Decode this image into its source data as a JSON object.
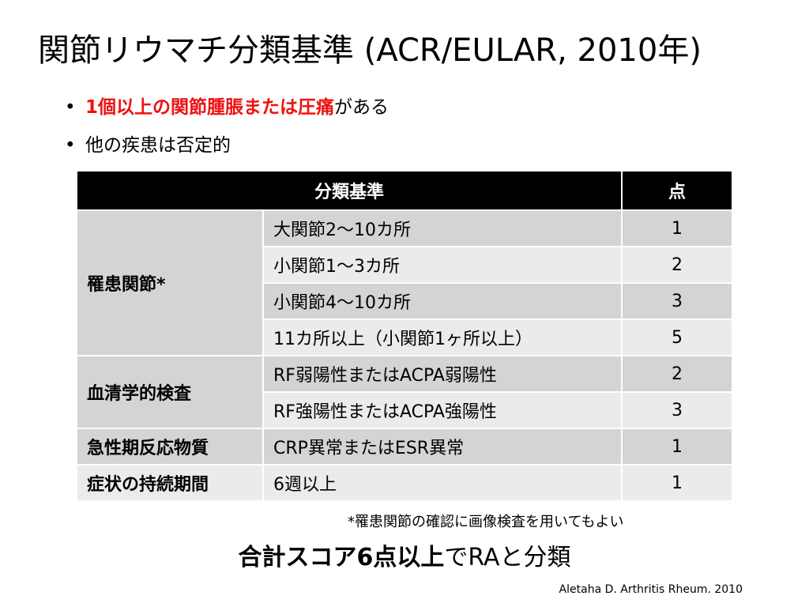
{
  "title": "関節リウマチ分類基準 (ACR/EULAR, 2010年)",
  "bullets": {
    "b1_dot": "•",
    "b1_red": "1個以上の関節腫脹または圧痛",
    "b1_rest": "がある",
    "b2_dot": "•",
    "b2_text": "他の疾患は否定的"
  },
  "table": {
    "header_criteria": "分類基準",
    "header_points": "点",
    "categories": {
      "joints": "罹患関節*",
      "serology": "血清学的検査",
      "acute": "急性期反応物質",
      "duration": "症状の持続期間"
    },
    "rows": [
      {
        "desc": "大関節2～10カ所",
        "pts": "1"
      },
      {
        "desc": "小関節1～3カ所",
        "pts": "2"
      },
      {
        "desc": "小関節4～10カ所",
        "pts": "3"
      },
      {
        "desc": "11カ所以上（小関節1ヶ所以上）",
        "pts": "5"
      },
      {
        "desc": "RF弱陽性またはACPA弱陽性",
        "pts": "2"
      },
      {
        "desc": "RF強陽性またはACPA強陽性",
        "pts": "3"
      },
      {
        "desc": "CRP異常またはESR異常",
        "pts": "1"
      },
      {
        "desc": "6週以上",
        "pts": "1"
      }
    ]
  },
  "footnote": "*罹患関節の確認に画像検査を用いてもよい",
  "total": {
    "bold": "合計スコア6点以上",
    "rest": "でRAと分類"
  },
  "citation": "Aletaha D. Arthritis Rheum. 2010"
}
